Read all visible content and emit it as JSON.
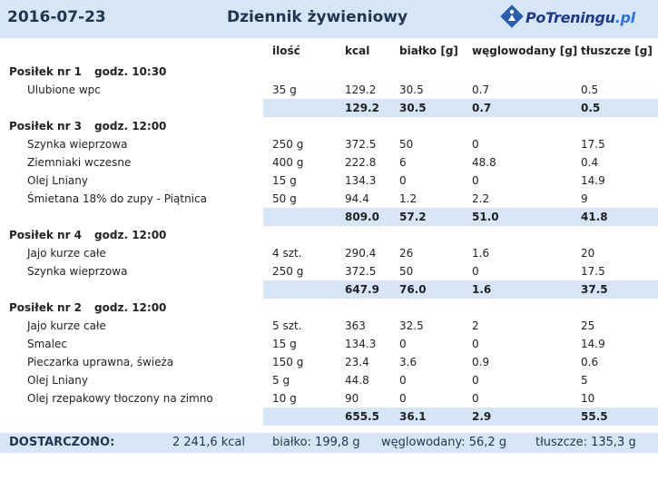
{
  "header": {
    "date": "2016-07-23",
    "title": "Dziennik żywieniowy",
    "logo_main": "PoTreningu",
    "logo_tld": ".pl"
  },
  "columns": {
    "qty": "ilość",
    "kcal": "kcal",
    "protein": "białko [g]",
    "carbs": "węglowodany [g]",
    "fat": "tłuszcze [g]"
  },
  "meals": [
    {
      "name": "Posiłek nr 1",
      "time": "godz. 10:30",
      "items": [
        {
          "name": "Ulubione wpc",
          "qty": "35 g",
          "kcal": "129.2",
          "protein": "30.5",
          "carbs": "0.7",
          "fat": "0.5"
        }
      ],
      "total": {
        "kcal": "129.2",
        "protein": "30.5",
        "carbs": "0.7",
        "fat": "0.5"
      }
    },
    {
      "name": "Posiłek nr 3",
      "time": "godz. 12:00",
      "items": [
        {
          "name": "Szynka wieprzowa",
          "qty": "250 g",
          "kcal": "372.5",
          "protein": "50",
          "carbs": "0",
          "fat": "17.5"
        },
        {
          "name": "Ziemniaki wczesne",
          "qty": "400 g",
          "kcal": "222.8",
          "protein": "6",
          "carbs": "48.8",
          "fat": "0.4"
        },
        {
          "name": "Olej Lniany",
          "qty": "15 g",
          "kcal": "134.3",
          "protein": "0",
          "carbs": "0",
          "fat": "14.9"
        },
        {
          "name": "Śmietana 18% do zupy - Piątnica",
          "qty": "50 g",
          "kcal": "94.4",
          "protein": "1.2",
          "carbs": "2.2",
          "fat": "9"
        }
      ],
      "total": {
        "kcal": "809.0",
        "protein": "57.2",
        "carbs": "51.0",
        "fat": "41.8"
      }
    },
    {
      "name": "Posiłek nr 4",
      "time": "godz. 12:00",
      "items": [
        {
          "name": "Jajo kurze całe",
          "qty": "4 szt.",
          "kcal": "290.4",
          "protein": "26",
          "carbs": "1.6",
          "fat": "20"
        },
        {
          "name": "Szynka wieprzowa",
          "qty": "250 g",
          "kcal": "372.5",
          "protein": "50",
          "carbs": "0",
          "fat": "17.5"
        }
      ],
      "total": {
        "kcal": "647.9",
        "protein": "76.0",
        "carbs": "1.6",
        "fat": "37.5"
      }
    },
    {
      "name": "Posiłek nr 2",
      "time": "godz. 12:00",
      "items": [
        {
          "name": "Jajo kurze całe",
          "qty": "5 szt.",
          "kcal": "363",
          "protein": "32.5",
          "carbs": "2",
          "fat": "25"
        },
        {
          "name": "Smalec",
          "qty": "15 g",
          "kcal": "134.3",
          "protein": "0",
          "carbs": "0",
          "fat": "14.9"
        },
        {
          "name": "Pieczarka uprawna, świeża",
          "qty": "150 g",
          "kcal": "23.4",
          "protein": "3.6",
          "carbs": "0.9",
          "fat": "0.6"
        },
        {
          "name": "Olej Lniany",
          "qty": "5 g",
          "kcal": "44.8",
          "protein": "0",
          "carbs": "0",
          "fat": "5"
        },
        {
          "name": "Olej rzepakowy tłoczony na zimno",
          "qty": "10 g",
          "kcal": "90",
          "protein": "0",
          "carbs": "0",
          "fat": "10"
        }
      ],
      "total": {
        "kcal": "655.5",
        "protein": "36.1",
        "carbs": "2.9",
        "fat": "55.5"
      }
    }
  ],
  "footer": {
    "label": "DOSTARCZONO:",
    "kcal": "2 241,6 kcal",
    "protein": "białko: 199,8 g",
    "carbs": "węglowodany: 56,2 g",
    "fat": "tłuszcze: 135,3 g"
  }
}
